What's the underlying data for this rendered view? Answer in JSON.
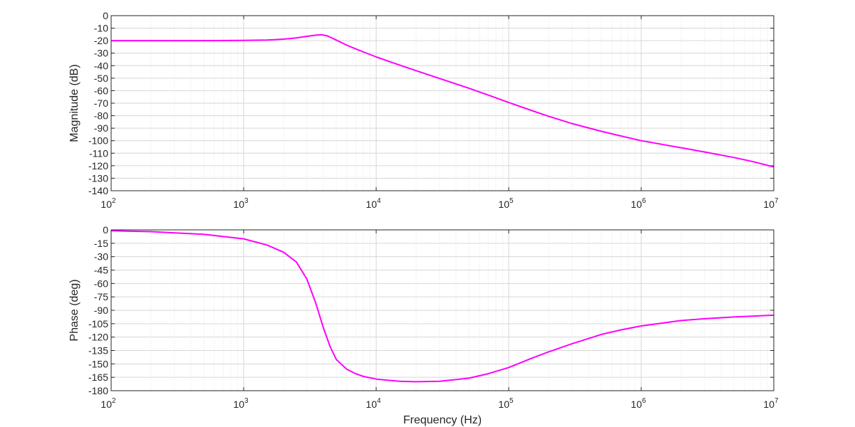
{
  "chart_data": [
    {
      "type": "line",
      "title": "",
      "xlabel": "",
      "ylabel": "Magnitude (dB)",
      "x_scale": "log",
      "xlim": [
        100,
        10000000
      ],
      "ylim": [
        -140,
        0
      ],
      "grid": true,
      "x_ticks": [
        {
          "value": 100,
          "base": "10",
          "exp": "2"
        },
        {
          "value": 1000,
          "base": "10",
          "exp": "3"
        },
        {
          "value": 10000,
          "base": "10",
          "exp": "4"
        },
        {
          "value": 100000,
          "base": "10",
          "exp": "5"
        },
        {
          "value": 1000000,
          "base": "10",
          "exp": "6"
        },
        {
          "value": 10000000,
          "base": "10",
          "exp": "7"
        }
      ],
      "y_ticks": [
        {
          "value": 0,
          "label": "0"
        },
        {
          "value": -10,
          "label": "-10"
        },
        {
          "value": -20,
          "label": "-20"
        },
        {
          "value": -30,
          "label": "-30"
        },
        {
          "value": -40,
          "label": "-40"
        },
        {
          "value": -50,
          "label": "-50"
        },
        {
          "value": -60,
          "label": "-60"
        },
        {
          "value": -70,
          "label": "-70"
        },
        {
          "value": -80,
          "label": "-80"
        },
        {
          "value": -90,
          "label": "-90"
        },
        {
          "value": -100,
          "label": "-100"
        },
        {
          "value": -110,
          "label": "-110"
        },
        {
          "value": -120,
          "label": "-120"
        },
        {
          "value": -130,
          "label": "-130"
        },
        {
          "value": -140,
          "label": "-140"
        }
      ],
      "series": [
        {
          "color": "#ff00ff",
          "x": [
            100,
            200,
            500,
            1000,
            1500,
            2000,
            2500,
            3000,
            3500,
            3900,
            4300,
            5000,
            6000,
            7000,
            8000,
            10000,
            15000,
            20000,
            30000,
            50000,
            70000,
            100000,
            150000,
            200000,
            300000,
            500000,
            700000,
            1000000,
            2000000,
            3000000,
            5000000,
            7000000,
            10000000
          ],
          "y": [
            -20,
            -20,
            -20,
            -19.8,
            -19.5,
            -18.8,
            -17.8,
            -16.5,
            -15.6,
            -15.3,
            -16.2,
            -19.5,
            -23.6,
            -26.6,
            -29.0,
            -33.0,
            -39.5,
            -44.0,
            -50.2,
            -58.0,
            -63.5,
            -69.5,
            -76.0,
            -80.5,
            -86.3,
            -92.5,
            -96.2,
            -100.0,
            -105.6,
            -109.0,
            -113.4,
            -116.8,
            -121.0
          ]
        }
      ]
    },
    {
      "type": "line",
      "title": "",
      "xlabel": "Frequency (Hz)",
      "ylabel": "Phase (deg)",
      "x_scale": "log",
      "xlim": [
        100,
        10000000
      ],
      "ylim": [
        -180,
        0
      ],
      "grid": true,
      "x_ticks": [
        {
          "value": 100,
          "base": "10",
          "exp": "2"
        },
        {
          "value": 1000,
          "base": "10",
          "exp": "3"
        },
        {
          "value": 10000,
          "base": "10",
          "exp": "4"
        },
        {
          "value": 100000,
          "base": "10",
          "exp": "5"
        },
        {
          "value": 1000000,
          "base": "10",
          "exp": "6"
        },
        {
          "value": 10000000,
          "base": "10",
          "exp": "7"
        }
      ],
      "y_ticks": [
        {
          "value": 0,
          "label": "0"
        },
        {
          "value": -15,
          "label": "-15"
        },
        {
          "value": -30,
          "label": "-30"
        },
        {
          "value": -45,
          "label": "-45"
        },
        {
          "value": -60,
          "label": "-60"
        },
        {
          "value": -75,
          "label": "-75"
        },
        {
          "value": -90,
          "label": "-90"
        },
        {
          "value": -105,
          "label": "-105"
        },
        {
          "value": -120,
          "label": "-120"
        },
        {
          "value": -135,
          "label": "-135"
        },
        {
          "value": -150,
          "label": "-150"
        },
        {
          "value": -165,
          "label": "-165"
        },
        {
          "value": -180,
          "label": "-180"
        }
      ],
      "series": [
        {
          "color": "#ff00ff",
          "x": [
            100,
            200,
            500,
            1000,
            1500,
            2000,
            2500,
            3000,
            3500,
            4000,
            4500,
            5000,
            6000,
            7000,
            8000,
            10000,
            15000,
            20000,
            30000,
            50000,
            70000,
            100000,
            150000,
            200000,
            300000,
            500000,
            700000,
            1000000,
            2000000,
            3000000,
            5000000,
            10000000
          ],
          "y": [
            -1,
            -2,
            -5,
            -10,
            -17,
            -25,
            -36,
            -55,
            -82,
            -110,
            -131,
            -145,
            -156,
            -161,
            -164,
            -167,
            -169.5,
            -170,
            -169.5,
            -166,
            -161,
            -154,
            -143.5,
            -136.5,
            -127.5,
            -117,
            -112,
            -107.5,
            -101.5,
            -99.5,
            -97.5,
            -95.5
          ]
        }
      ]
    }
  ]
}
